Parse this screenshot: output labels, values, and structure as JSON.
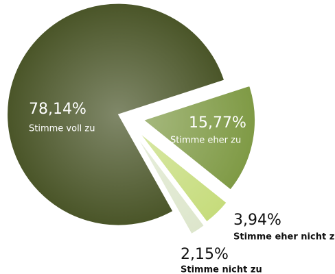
{
  "chart_data": {
    "type": "pie",
    "categories": [
      "Stimme voll zu",
      "Stimme eher zu",
      "Stimme eher nicht zu",
      "Stimme nicht zu"
    ],
    "values": [
      78.14,
      15.77,
      3.94,
      2.15
    ],
    "value_labels": [
      "78,14%",
      "15,77%",
      "3,94%",
      "2,15%"
    ],
    "colors": [
      "#4a5528",
      "#7f9a45",
      "#c6dc7c",
      "#dde6cc"
    ]
  }
}
